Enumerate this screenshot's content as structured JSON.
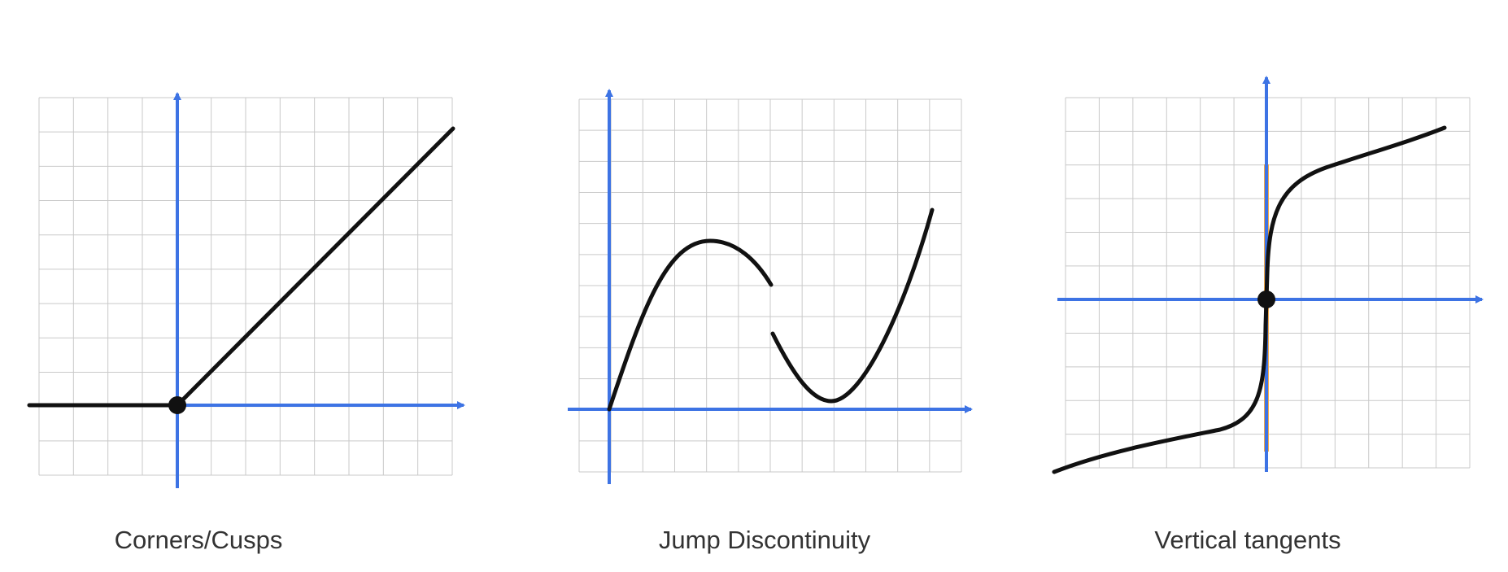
{
  "colors": {
    "grid": "#c9c9c9",
    "axis": "#3d73e4",
    "curve": "#111111",
    "tangent": "#f0a84a",
    "caption": "#333333"
  },
  "panels": [
    {
      "id": "corners",
      "caption": "Corners/Cusps",
      "feature": "corner at origin joining a horizontal ray and a rising line"
    },
    {
      "id": "jump",
      "caption": "Jump Discontinuity",
      "feature": "curve breaks and restarts at a lower value"
    },
    {
      "id": "vertical",
      "caption": "Vertical tangents",
      "feature": "curve becomes vertical through the origin"
    }
  ]
}
